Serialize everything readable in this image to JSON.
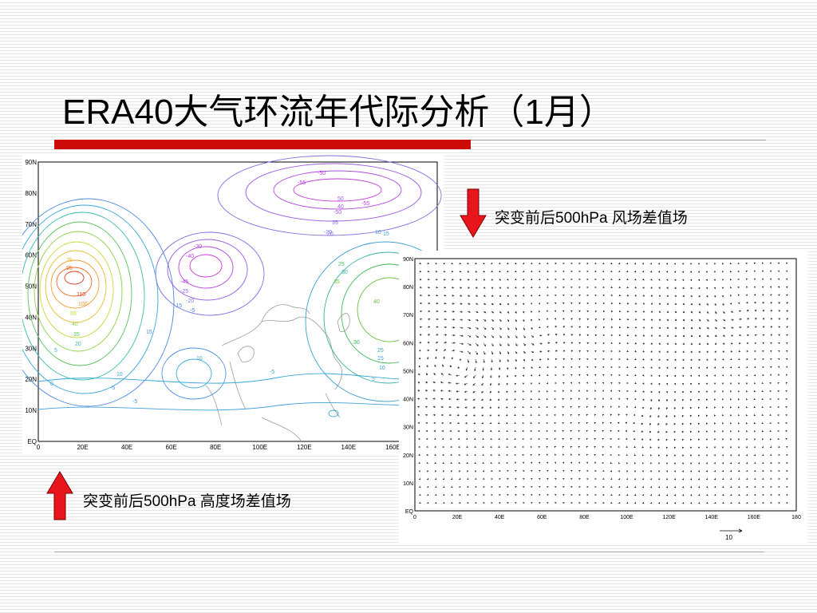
{
  "slide": {
    "title": "ERA40大气环流年代际分析（1月）"
  },
  "left_panel": {
    "caption": "突变前后500hPa 高度场差值场",
    "arrow_direction": "up",
    "lat_labels": [
      "90N",
      "80N",
      "70N",
      "60N",
      "50N",
      "40N",
      "30N",
      "20N",
      "10N",
      "EQ"
    ],
    "lon_labels": [
      "0",
      "20E",
      "40E",
      "60E",
      "80E",
      "100E",
      "120E",
      "140E",
      "160E"
    ],
    "contour_labels": [
      "45",
      "40",
      "35",
      "30",
      "25",
      "20",
      "15",
      "10",
      "5",
      "0",
      "-5",
      "-10",
      "-15",
      "-20",
      "-25",
      "-30",
      "-35",
      "-40",
      "-45",
      "-50",
      "-55",
      "65",
      "95",
      "100",
      "110",
      "60",
      "40",
      "35",
      "30",
      "25"
    ]
  },
  "right_panel": {
    "caption": "突变前后500hPa 风场差值场",
    "arrow_direction": "down",
    "lat_labels": [
      "90N",
      "80N",
      "70N",
      "60N",
      "50N",
      "40N",
      "30N",
      "20N",
      "10N",
      "EQ"
    ],
    "lon_labels": [
      "0",
      "20E",
      "40E",
      "60E",
      "80E",
      "100E",
      "120E",
      "140E",
      "160E",
      "180"
    ],
    "reference_vector_label": "10"
  },
  "colors": {
    "title_bar": "#cc0a0a",
    "arrow_red": "#e8161c"
  }
}
